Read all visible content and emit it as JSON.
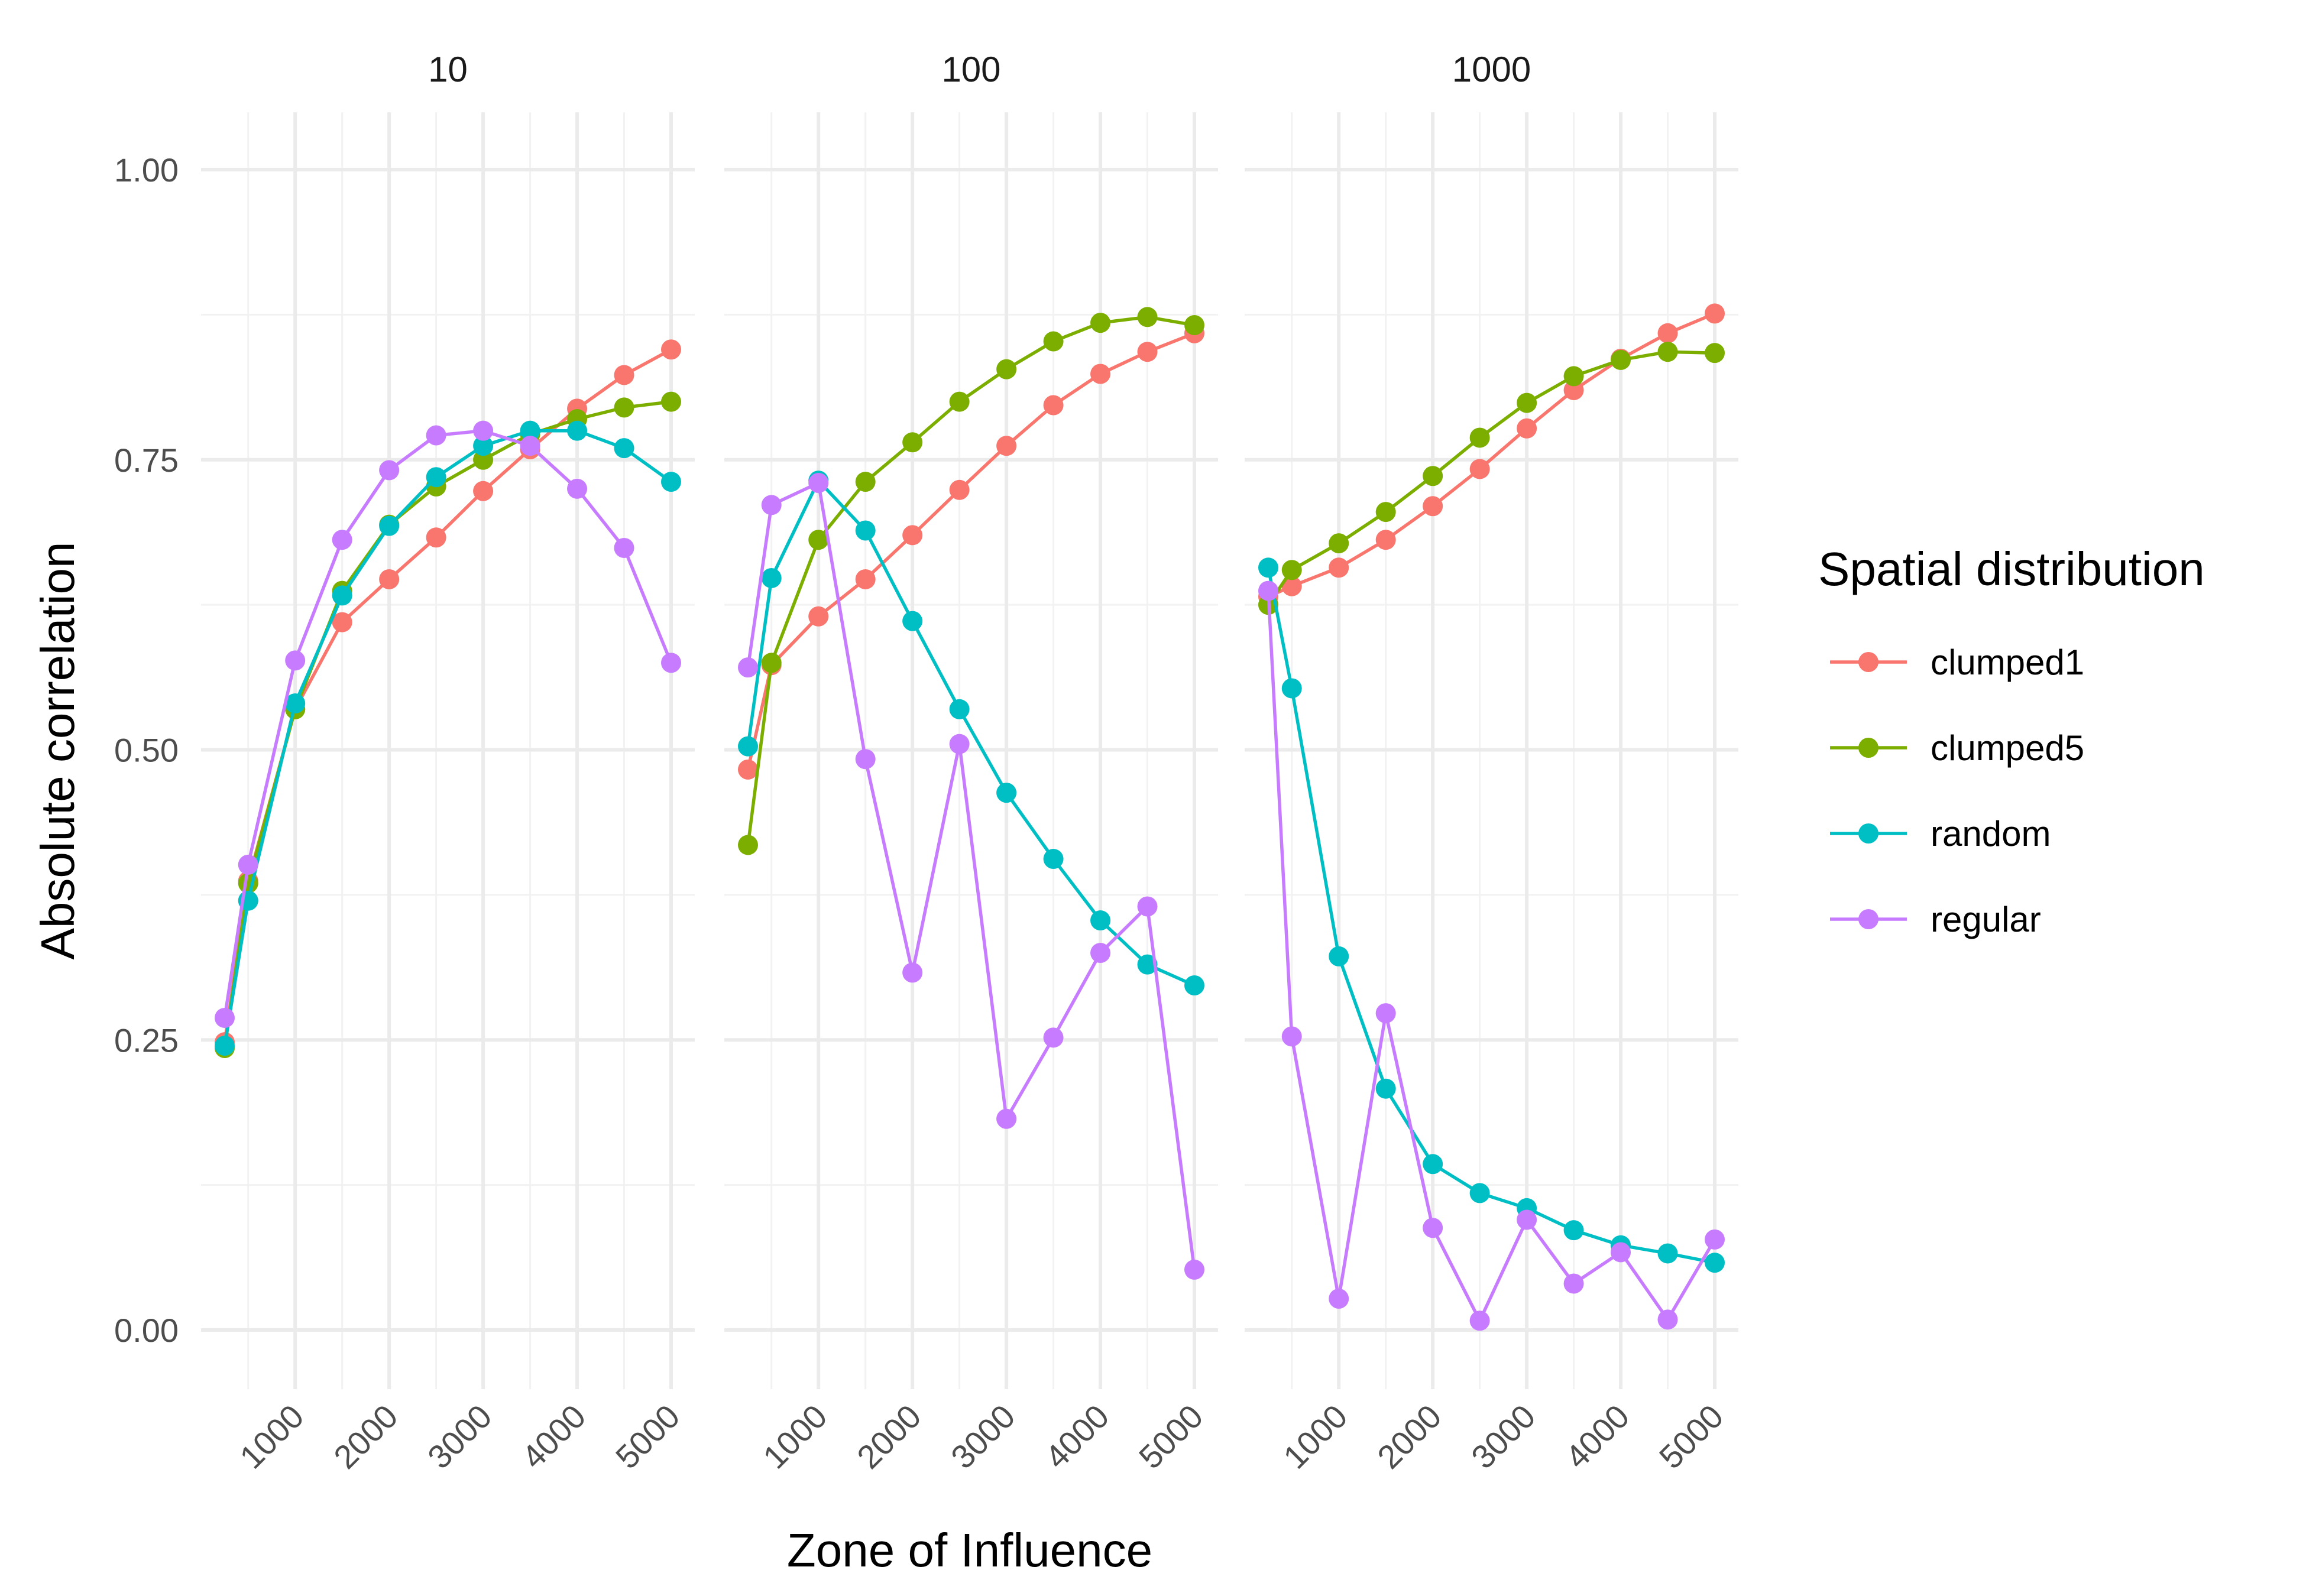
{
  "chart_data": {
    "type": "line",
    "xlabel": "Zone of Influence",
    "ylabel": "Absolute correlation",
    "legend_title": "Spatial distribution",
    "legend_position": "right",
    "grid": true,
    "xlim": [
      250,
      5000
    ],
    "ylim": [
      0,
      1
    ],
    "x_ticks": [
      1000,
      2000,
      3000,
      4000,
      5000
    ],
    "y_ticks": [
      0.0,
      0.25,
      0.5,
      0.75,
      1.0
    ],
    "y_tick_labels": [
      "0.00",
      "0.25",
      "0.50",
      "0.75",
      "1.00"
    ],
    "x": [
      250,
      500,
      1000,
      1500,
      2000,
      2500,
      3000,
      3500,
      4000,
      4500,
      5000
    ],
    "series_colors": {
      "clumped1": "#F8766D",
      "clumped5": "#7CAE00",
      "random": "#00BFC4",
      "regular": "#C77CFF"
    },
    "panels": [
      {
        "label": "10",
        "series": [
          {
            "name": "clumped1",
            "values": [
              0.248,
              0.387,
              0.535,
              0.61,
              0.647,
              0.683,
              0.723,
              0.759,
              0.794,
              0.823,
              0.845
            ]
          },
          {
            "name": "clumped5",
            "values": [
              0.243,
              0.385,
              0.535,
              0.637,
              0.694,
              0.727,
              0.75,
              0.772,
              0.785,
              0.795,
              0.8
            ]
          },
          {
            "name": "random",
            "values": [
              0.245,
              0.37,
              0.54,
              0.633,
              0.693,
              0.735,
              0.762,
              0.775,
              0.775,
              0.76,
              0.731
            ]
          },
          {
            "name": "regular",
            "values": [
              0.269,
              0.401,
              0.577,
              0.681,
              0.741,
              0.771,
              0.775,
              0.762,
              0.725,
              0.674,
              0.575
            ]
          }
        ]
      },
      {
        "label": "100",
        "series": [
          {
            "name": "clumped1",
            "values": [
              0.483,
              0.573,
              0.615,
              0.647,
              0.685,
              0.724,
              0.762,
              0.797,
              0.824,
              0.843,
              0.859
            ]
          },
          {
            "name": "clumped5",
            "values": [
              0.418,
              0.575,
              0.681,
              0.731,
              0.765,
              0.8,
              0.828,
              0.852,
              0.868,
              0.873,
              0.866
            ]
          },
          {
            "name": "random",
            "values": [
              0.503,
              0.648,
              0.732,
              0.689,
              0.611,
              0.535,
              0.463,
              0.406,
              0.353,
              0.315,
              0.297
            ]
          },
          {
            "name": "regular",
            "values": [
              0.571,
              0.711,
              0.73,
              0.492,
              0.308,
              0.505,
              0.182,
              0.252,
              0.325,
              0.365,
              0.052
            ]
          }
        ]
      },
      {
        "label": "1000",
        "series": [
          {
            "name": "clumped1",
            "values": [
              0.632,
              0.641,
              0.657,
              0.681,
              0.71,
              0.742,
              0.777,
              0.81,
              0.837,
              0.859,
              0.876
            ]
          },
          {
            "name": "clumped5",
            "values": [
              0.625,
              0.655,
              0.678,
              0.705,
              0.736,
              0.769,
              0.799,
              0.822,
              0.836,
              0.843,
              0.842
            ]
          },
          {
            "name": "random",
            "values": [
              0.657,
              0.553,
              0.322,
              0.208,
              0.143,
              0.118,
              0.105,
              0.086,
              0.073,
              0.066,
              0.058
            ]
          },
          {
            "name": "regular",
            "values": [
              0.637,
              0.253,
              0.027,
              0.273,
              0.088,
              0.008,
              0.095,
              0.04,
              0.067,
              0.009,
              0.078
            ]
          }
        ]
      }
    ]
  }
}
